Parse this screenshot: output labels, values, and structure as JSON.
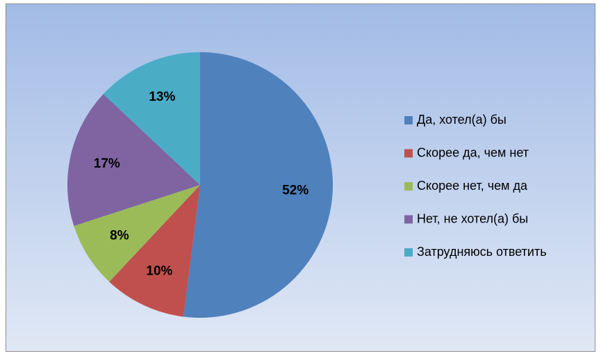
{
  "chart_data": {
    "type": "pie",
    "categories": [
      "Да, хотел(а) бы",
      "Скорее да, чем нет",
      "Скорее нет, чем да",
      "Нет, не хотел(а) бы",
      "Затрудняюсь ответить"
    ],
    "values": [
      52,
      10,
      8,
      17,
      13
    ],
    "value_labels": [
      "52%",
      "10%",
      "8%",
      "17%",
      "13%"
    ],
    "colors": [
      "#4f81bd",
      "#c0504d",
      "#9bbb59",
      "#8064a2",
      "#4bacc6"
    ],
    "legend": "right"
  }
}
